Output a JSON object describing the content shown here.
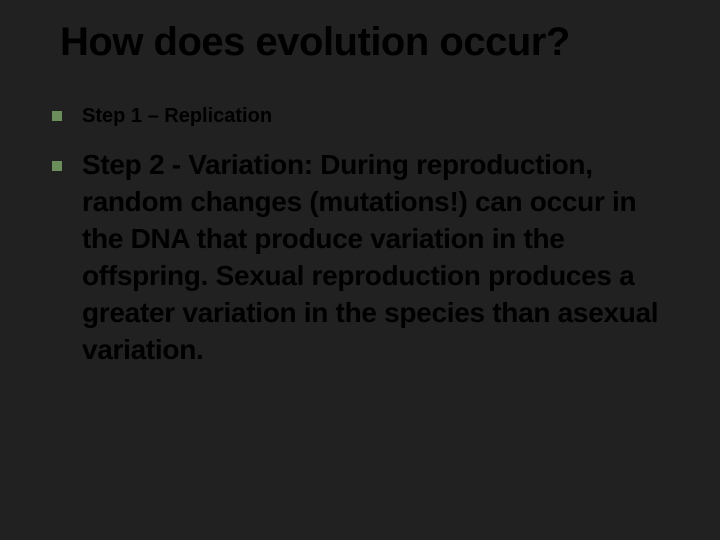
{
  "slide": {
    "title": "How does evolution occur?",
    "bullets": [
      {
        "text": "Step 1 – Replication",
        "size": "small"
      },
      {
        "text": "Step 2 - Variation: During reproduction, random changes (mutations!) can occur in the DNA that produce variation in the offspring. Sexual reproduction produces a greater variation in the species than asexual variation.",
        "size": "large"
      }
    ],
    "background_color": "#212121",
    "bullet_color": "#6b8e5a",
    "text_color": "#000000",
    "title_fontsize": 40,
    "bullet_small_fontsize": 20,
    "bullet_large_fontsize": 28
  }
}
